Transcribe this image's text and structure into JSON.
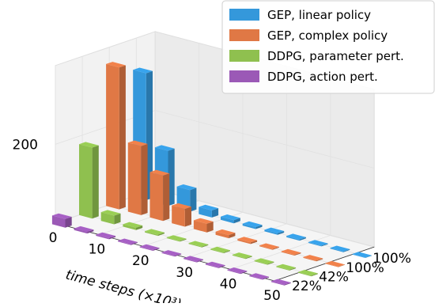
{
  "chart_data": {
    "type": "bar",
    "x": [
      0,
      5,
      10,
      15,
      20,
      25,
      30,
      35,
      40,
      45,
      50
    ],
    "x_ticks": [
      "0",
      "10",
      "20",
      "30",
      "40",
      "50"
    ],
    "x_tick_values": [
      0,
      10,
      20,
      30,
      40,
      50
    ],
    "xlabel": "time steps (×10³)",
    "y_ticks": [
      "22%",
      "42%",
      "100%",
      "100%"
    ],
    "z_ticks": [
      "200"
    ],
    "z_tick_values": [
      200
    ],
    "zlim": [
      0,
      400
    ],
    "grid": true,
    "legend_position": "top-right",
    "series": [
      {
        "name": "DDPG, action pert.",
        "y_label": "22%",
        "color": "#9b59b6",
        "values": [
          22,
          4,
          3,
          2,
          2,
          2,
          2,
          2,
          2,
          2,
          2
        ]
      },
      {
        "name": "DDPG, parameter pert.",
        "y_label": "42%",
        "color": "#8fc04f",
        "values": [
          180,
          22,
          6,
          3,
          2,
          2,
          2,
          2,
          2,
          2,
          2
        ]
      },
      {
        "name": "GEP, complex policy",
        "y_label": "100%",
        "color": "#e07845",
        "values": [
          360,
          175,
          115,
          45,
          22,
          8,
          4,
          2,
          2,
          2,
          1
        ]
      },
      {
        "name": "GEP, linear policy",
        "y_label": "100%",
        "color": "#3498db",
        "values": [
          322,
          140,
          55,
          18,
          8,
          5,
          4,
          3,
          2,
          2,
          1
        ]
      }
    ]
  }
}
